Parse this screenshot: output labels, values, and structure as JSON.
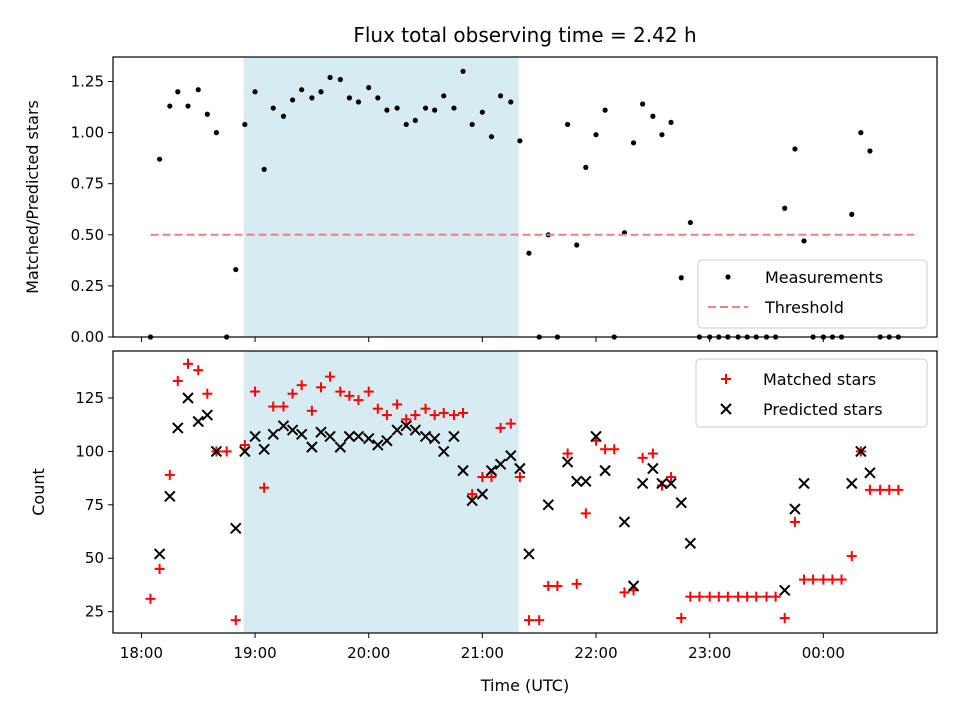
{
  "chart_data": [
    {
      "type": "scatter",
      "title": "Flux total observing time = 2.42 h",
      "ylabel": "Matched/Predicted stars",
      "xlabel": "",
      "x_unit": "hours_since_18:00_UTC",
      "xlim": [
        -0.25,
        7.0
      ],
      "ylim": [
        0,
        1.37
      ],
      "yticks": [
        "0.00",
        "0.25",
        "0.50",
        "0.75",
        "1.00",
        "1.25"
      ],
      "shaded_span": [
        0.9,
        3.32
      ],
      "shade_color": "#add8e6",
      "threshold": {
        "name": "Threshold",
        "value": 0.5,
        "x": [
          0.08,
          6.8
        ],
        "color": "#f08080"
      },
      "legend": {
        "placement": "lower-right",
        "entries": [
          "Measurements",
          "Threshold"
        ]
      },
      "series": [
        {
          "name": "Measurements",
          "color": "#000000",
          "marker": "dot",
          "points": [
            [
              0.08,
              0.0
            ],
            [
              0.16,
              0.87
            ],
            [
              0.25,
              1.13
            ],
            [
              0.32,
              1.2
            ],
            [
              0.41,
              1.13
            ],
            [
              0.5,
              1.21
            ],
            [
              0.58,
              1.09
            ],
            [
              0.66,
              1.0
            ],
            [
              0.75,
              0.0
            ],
            [
              0.83,
              0.33
            ],
            [
              0.91,
              1.04
            ],
            [
              1.0,
              1.2
            ],
            [
              1.08,
              0.82
            ],
            [
              1.16,
              1.12
            ],
            [
              1.25,
              1.08
            ],
            [
              1.33,
              1.16
            ],
            [
              1.41,
              1.21
            ],
            [
              1.5,
              1.17
            ],
            [
              1.58,
              1.2
            ],
            [
              1.66,
              1.27
            ],
            [
              1.75,
              1.26
            ],
            [
              1.83,
              1.17
            ],
            [
              1.91,
              1.15
            ],
            [
              2.0,
              1.22
            ],
            [
              2.08,
              1.17
            ],
            [
              2.16,
              1.11
            ],
            [
              2.25,
              1.12
            ],
            [
              2.33,
              1.04
            ],
            [
              2.41,
              1.06
            ],
            [
              2.5,
              1.12
            ],
            [
              2.58,
              1.11
            ],
            [
              2.66,
              1.18
            ],
            [
              2.75,
              1.12
            ],
            [
              2.83,
              1.3
            ],
            [
              2.91,
              1.04
            ],
            [
              3.0,
              1.1
            ],
            [
              3.08,
              0.98
            ],
            [
              3.16,
              1.18
            ],
            [
              3.25,
              1.15
            ],
            [
              3.33,
              0.96
            ],
            [
              3.41,
              0.41
            ],
            [
              3.5,
              0.0
            ],
            [
              3.58,
              0.5
            ],
            [
              3.66,
              0.0
            ],
            [
              3.75,
              1.04
            ],
            [
              3.83,
              0.45
            ],
            [
              3.91,
              0.83
            ],
            [
              4.0,
              0.99
            ],
            [
              4.08,
              1.11
            ],
            [
              4.16,
              0.0
            ],
            [
              4.25,
              0.51
            ],
            [
              4.33,
              0.95
            ],
            [
              4.41,
              1.14
            ],
            [
              4.5,
              1.08
            ],
            [
              4.58,
              0.99
            ],
            [
              4.66,
              1.05
            ],
            [
              4.75,
              0.29
            ],
            [
              4.83,
              0.56
            ],
            [
              4.91,
              0.0
            ],
            [
              5.0,
              0.0
            ],
            [
              5.08,
              0.0
            ],
            [
              5.16,
              0.0
            ],
            [
              5.25,
              0.0
            ],
            [
              5.33,
              0.0
            ],
            [
              5.41,
              0.0
            ],
            [
              5.5,
              0.0
            ],
            [
              5.58,
              0.0
            ],
            [
              5.66,
              0.63
            ],
            [
              5.75,
              0.92
            ],
            [
              5.83,
              0.47
            ],
            [
              5.91,
              0.0
            ],
            [
              6.0,
              0.0
            ],
            [
              6.08,
              0.0
            ],
            [
              6.16,
              0.0
            ],
            [
              6.25,
              0.6
            ],
            [
              6.33,
              1.0
            ],
            [
              6.41,
              0.91
            ],
            [
              6.5,
              0.0
            ],
            [
              6.58,
              0.0
            ],
            [
              6.66,
              0.0
            ]
          ]
        }
      ]
    },
    {
      "type": "scatter",
      "title": "",
      "ylabel": "Count",
      "xlabel": "Time (UTC)",
      "x_unit": "hours_since_18:00_UTC",
      "xlim": [
        -0.25,
        7.0
      ],
      "ylim": [
        15,
        147
      ],
      "yticks": [
        "25",
        "50",
        "75",
        "100",
        "125"
      ],
      "xticks": [
        "18:00",
        "19:00",
        "20:00",
        "21:00",
        "22:00",
        "23:00",
        "00:00"
      ],
      "shaded_span": [
        0.9,
        3.32
      ],
      "shade_color": "#add8e6",
      "legend": {
        "placement": "upper-right",
        "entries": [
          "Matched stars",
          "Predicted stars"
        ]
      },
      "series": [
        {
          "name": "Matched stars",
          "color": "#ff0000",
          "marker": "plus",
          "points": [
            [
              0.08,
              31
            ],
            [
              0.16,
              45
            ],
            [
              0.25,
              89
            ],
            [
              0.32,
              133
            ],
            [
              0.41,
              141
            ],
            [
              0.5,
              138
            ],
            [
              0.58,
              127
            ],
            [
              0.66,
              100
            ],
            [
              0.75,
              100
            ],
            [
              0.83,
              21
            ],
            [
              0.91,
              103
            ],
            [
              1.0,
              128
            ],
            [
              1.08,
              83
            ],
            [
              1.16,
              121
            ],
            [
              1.25,
              121
            ],
            [
              1.33,
              127
            ],
            [
              1.41,
              131
            ],
            [
              1.5,
              119
            ],
            [
              1.58,
              130
            ],
            [
              1.66,
              135
            ],
            [
              1.75,
              128
            ],
            [
              1.83,
              126
            ],
            [
              1.91,
              124
            ],
            [
              2.0,
              128
            ],
            [
              2.08,
              120
            ],
            [
              2.16,
              117
            ],
            [
              2.25,
              122
            ],
            [
              2.33,
              115
            ],
            [
              2.41,
              117
            ],
            [
              2.5,
              120
            ],
            [
              2.58,
              117
            ],
            [
              2.66,
              118
            ],
            [
              2.75,
              117
            ],
            [
              2.83,
              118
            ],
            [
              2.91,
              80
            ],
            [
              3.0,
              88
            ],
            [
              3.08,
              88
            ],
            [
              3.16,
              111
            ],
            [
              3.25,
              113
            ],
            [
              3.33,
              88
            ],
            [
              3.41,
              21
            ],
            [
              3.5,
              21
            ],
            [
              3.58,
              37
            ],
            [
              3.66,
              37
            ],
            [
              3.75,
              99
            ],
            [
              3.83,
              38
            ],
            [
              3.91,
              71
            ],
            [
              4.0,
              105
            ],
            [
              4.08,
              101
            ],
            [
              4.16,
              101
            ],
            [
              4.25,
              34
            ],
            [
              4.33,
              35
            ],
            [
              4.41,
              97
            ],
            [
              4.5,
              99
            ],
            [
              4.58,
              84
            ],
            [
              4.66,
              88
            ],
            [
              4.75,
              22
            ],
            [
              4.83,
              32
            ],
            [
              4.91,
              32
            ],
            [
              5.0,
              32
            ],
            [
              5.08,
              32
            ],
            [
              5.16,
              32
            ],
            [
              5.25,
              32
            ],
            [
              5.33,
              32
            ],
            [
              5.41,
              32
            ],
            [
              5.5,
              32
            ],
            [
              5.58,
              32
            ],
            [
              5.66,
              22
            ],
            [
              5.75,
              67
            ],
            [
              5.83,
              40
            ],
            [
              5.91,
              40
            ],
            [
              6.0,
              40
            ],
            [
              6.08,
              40
            ],
            [
              6.16,
              40
            ],
            [
              6.25,
              51
            ],
            [
              6.33,
              100
            ],
            [
              6.41,
              82
            ],
            [
              6.5,
              82
            ],
            [
              6.58,
              82
            ],
            [
              6.66,
              82
            ]
          ]
        },
        {
          "name": "Predicted stars",
          "color": "#000000",
          "marker": "x",
          "points": [
            [
              0.16,
              52
            ],
            [
              0.25,
              79
            ],
            [
              0.32,
              111
            ],
            [
              0.41,
              125
            ],
            [
              0.5,
              114
            ],
            [
              0.58,
              117
            ],
            [
              0.66,
              100
            ],
            [
              0.83,
              64
            ],
            [
              0.91,
              100
            ],
            [
              1.0,
              107
            ],
            [
              1.08,
              101
            ],
            [
              1.16,
              108
            ],
            [
              1.25,
              112
            ],
            [
              1.33,
              110
            ],
            [
              1.41,
              108
            ],
            [
              1.5,
              102
            ],
            [
              1.58,
              109
            ],
            [
              1.66,
              107
            ],
            [
              1.75,
              102
            ],
            [
              1.83,
              107
            ],
            [
              1.91,
              107
            ],
            [
              2.0,
              106
            ],
            [
              2.08,
              103
            ],
            [
              2.16,
              105
            ],
            [
              2.25,
              110
            ],
            [
              2.33,
              112
            ],
            [
              2.41,
              110
            ],
            [
              2.5,
              107
            ],
            [
              2.58,
              106
            ],
            [
              2.66,
              100
            ],
            [
              2.75,
              107
            ],
            [
              2.83,
              91
            ],
            [
              2.91,
              77
            ],
            [
              3.0,
              80
            ],
            [
              3.08,
              91
            ],
            [
              3.16,
              94
            ],
            [
              3.25,
              98
            ],
            [
              3.33,
              92
            ],
            [
              3.41,
              52
            ],
            [
              3.58,
              75
            ],
            [
              3.75,
              95
            ],
            [
              3.83,
              86
            ],
            [
              3.91,
              86
            ],
            [
              4.0,
              107
            ],
            [
              4.08,
              91
            ],
            [
              4.25,
              67
            ],
            [
              4.33,
              37
            ],
            [
              4.41,
              85
            ],
            [
              4.5,
              92
            ],
            [
              4.58,
              85
            ],
            [
              4.66,
              85
            ],
            [
              4.75,
              76
            ],
            [
              4.83,
              57
            ],
            [
              5.66,
              35
            ],
            [
              5.75,
              73
            ],
            [
              5.83,
              85
            ],
            [
              6.25,
              85
            ],
            [
              6.33,
              100
            ],
            [
              6.41,
              90
            ]
          ]
        }
      ]
    }
  ]
}
